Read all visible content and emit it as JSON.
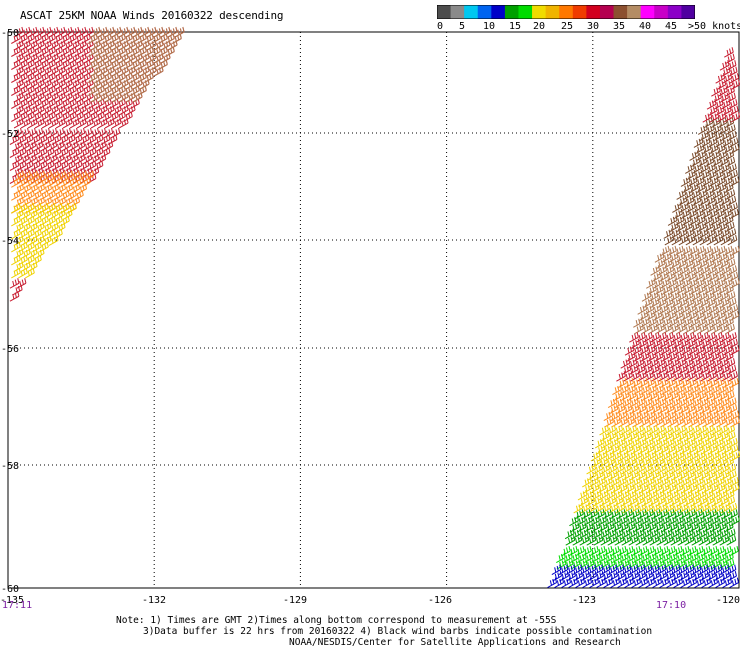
{
  "title": "ASCAT 25KM NOAA Winds 20160322 descending",
  "legend": {
    "colors": [
      "#4d4d4d",
      "#8a8a8a",
      "#00c8f0",
      "#0064f0",
      "#0000c8",
      "#00a000",
      "#00dc00",
      "#f0dc00",
      "#f0b400",
      "#ff7800",
      "#f03c00",
      "#d2001e",
      "#b40050",
      "#8c5030",
      "#b48c64",
      "#ff00ff",
      "#c800c8",
      "#8c00c8",
      "#5000a0"
    ],
    "labels": [
      "0",
      "5",
      "10",
      "15",
      "20",
      "25",
      "30",
      "35",
      "40",
      "45",
      ">50 knots"
    ]
  },
  "axes": {
    "lon_ticks": [
      "-135",
      "-132",
      "-129",
      "-126",
      "-123",
      "-120"
    ],
    "lat_ticks": [
      "-50",
      "-52",
      "-54",
      "-56",
      "-58",
      "-60"
    ]
  },
  "time_labels": {
    "left": "17:11",
    "right": "17:10"
  },
  "notes": {
    "line1": "Note: 1) Times are GMT 2)Times along bottom correspond to measurement at -55S",
    "line2": "3)Data buffer is 22 hrs from 20160322 4) Black wind barbs indicate possible contamination",
    "line3": "NOAA/NESDIS/Center for Satellite Applications and Research"
  },
  "swaths": [
    {
      "name": "west-swath",
      "segments": [
        {
          "lat_from": -50.0,
          "lat_to": -52.0,
          "color": "#c81e32"
        },
        {
          "lat_from": -50.0,
          "lat_to": -51.4,
          "color": "#b07850",
          "lon_min": -133.4
        },
        {
          "lat_from": -52.0,
          "lat_to": -53.0,
          "color": "#c81e32"
        },
        {
          "lat_from": -52.8,
          "lat_to": -53.6,
          "color": "#ff8c1e"
        },
        {
          "lat_from": -53.4,
          "lat_to": -54.8,
          "color": "#f0d200"
        },
        {
          "lat_from": -54.8,
          "lat_to": -55.6,
          "color": "#c81e32"
        }
      ]
    },
    {
      "name": "east-swath",
      "segments": [
        {
          "lat_from": -50.4,
          "lat_to": -51.8,
          "color": "#c81e32"
        },
        {
          "lat_from": -51.8,
          "lat_to": -54.2,
          "color": "#7a4a2a"
        },
        {
          "lat_from": -54.2,
          "lat_to": -55.8,
          "color": "#b07850"
        },
        {
          "lat_from": -55.8,
          "lat_to": -56.6,
          "color": "#c81e32"
        },
        {
          "lat_from": -56.6,
          "lat_to": -57.4,
          "color": "#ff8c1e"
        },
        {
          "lat_from": -57.4,
          "lat_to": -58.8,
          "color": "#f0d200"
        },
        {
          "lat_from": -58.8,
          "lat_to": -59.4,
          "color": "#00a000"
        },
        {
          "lat_from": -59.4,
          "lat_to": -59.7,
          "color": "#00dc00"
        },
        {
          "lat_from": -59.7,
          "lat_to": -60.0,
          "color": "#0000c8"
        }
      ]
    }
  ]
}
